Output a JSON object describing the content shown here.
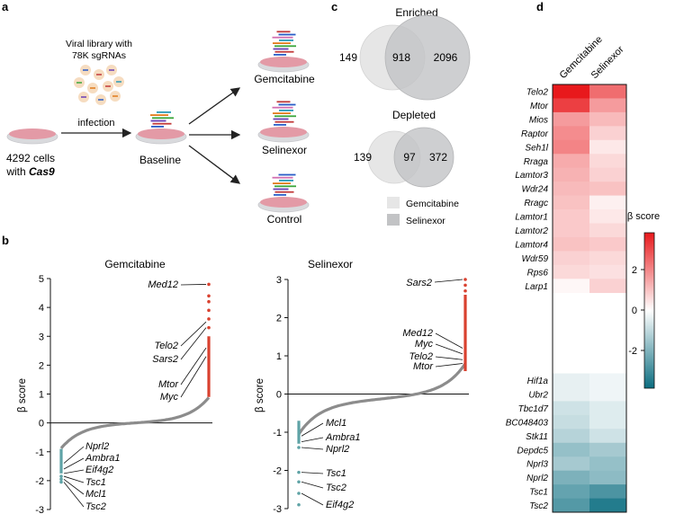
{
  "figure": {
    "panel_labels": [
      "a",
      "b",
      "c",
      "d"
    ]
  },
  "panel_a": {
    "library_label_1": "Viral library with",
    "library_label_2": "78K sgRNAs",
    "cells_label_1": "4292 cells",
    "cells_label_2_prefix": "with ",
    "cells_label_2_gene": "Cas9",
    "infection_label": "infection",
    "baseline_label": "Baseline",
    "arms": [
      "Gemcitabine",
      "Selinexor",
      "Control"
    ],
    "colors": {
      "dish_top": "#e39aa6",
      "dish_base": "#d9dadd",
      "arrow": "#222222"
    }
  },
  "panel_b": {
    "plots": [
      {
        "title": "Gemcitabine",
        "ylabel": "β score",
        "yticks": [
          "5",
          "4",
          "3",
          "2",
          "1",
          "0",
          "-1",
          "-2",
          "-3"
        ],
        "top_labels": [
          "Med12",
          "Telo2",
          "Sars2",
          "Mtor",
          "Myc"
        ],
        "bottom_labels": [
          "Nprl2",
          "Ambra1",
          "Eif4g2",
          "Tsc1",
          "Mcl1",
          "Tsc2"
        ]
      },
      {
        "title": "Selinexor",
        "ylabel": "β score",
        "yticks": [
          "3",
          "2",
          "1",
          "0",
          "-1",
          "-2",
          "-3"
        ],
        "top_labels": [
          "Sars2",
          "Med12",
          "Myc",
          "Telo2",
          "Mtor"
        ],
        "bottom_labels": [
          "Mcl1",
          "Ambra1",
          "Nprl2",
          "Tsc1",
          "Tsc2",
          "Eif4g2"
        ]
      }
    ],
    "colors": {
      "positive": "#d9412f",
      "negative": "#5fa3a6",
      "neutral": "#8c8c8c"
    }
  },
  "panel_c": {
    "enriched": {
      "title": "Enriched",
      "left": "149",
      "overlap": "918",
      "right": "2096"
    },
    "depleted": {
      "title": "Depleted",
      "left": "139",
      "overlap": "97",
      "right": "372"
    },
    "legend": [
      "Gemcitabine",
      "Selinexor"
    ],
    "colors": {
      "gemcitabine": "#e6e6e6",
      "selinexor": "#c2c3c5",
      "overlap": "#a9abad"
    }
  },
  "chart_data": {
    "type": "heatmap",
    "columns": [
      "Gemcitabine",
      "Selinexor"
    ],
    "rows_top": [
      "Telo2",
      "Mtor",
      "Mios",
      "Raptor",
      "Seh1l",
      "Rraga",
      "Lamtor3",
      "Wdr24",
      "Rragc",
      "Lamtor1",
      "Lamtor2",
      "Lamtor4",
      "Wdr59",
      "Rps6",
      "Larp1"
    ],
    "values_top": [
      [
        3.0,
        1.9
      ],
      [
        2.5,
        1.3
      ],
      [
        1.3,
        0.9
      ],
      [
        1.5,
        0.6
      ],
      [
        1.6,
        0.3
      ],
      [
        1.1,
        0.5
      ],
      [
        1.0,
        0.6
      ],
      [
        0.9,
        0.8
      ],
      [
        0.8,
        0.2
      ],
      [
        0.7,
        0.3
      ],
      [
        0.7,
        0.5
      ],
      [
        0.8,
        0.7
      ],
      [
        0.6,
        0.5
      ],
      [
        0.5,
        0.4
      ],
      [
        0.1,
        0.6
      ]
    ],
    "rows_bottom": [
      "Hif1a",
      "Ubr2",
      "Tbc1d7",
      "BC048403",
      "Stk11",
      "Depdc5",
      "Nprl3",
      "Nprl2",
      "Tsc1",
      "Tsc2"
    ],
    "values_bottom": [
      [
        -0.3,
        -0.2
      ],
      [
        -0.3,
        -0.2
      ],
      [
        -0.6,
        -0.4
      ],
      [
        -0.7,
        -0.4
      ],
      [
        -0.9,
        -0.6
      ],
      [
        -1.3,
        -1.1
      ],
      [
        -1.1,
        -1.3
      ],
      [
        -1.6,
        -1.4
      ],
      [
        -1.9,
        -2.2
      ],
      [
        -2.1,
        -2.7
      ]
    ],
    "colorbar_label": "β score",
    "colorbar_ticks": [
      "2",
      "0",
      "-2"
    ],
    "range": [
      -3,
      3
    ],
    "colors": {
      "high": "#e8191c",
      "mid": "#ffffff",
      "low": "#0b6d80"
    }
  }
}
